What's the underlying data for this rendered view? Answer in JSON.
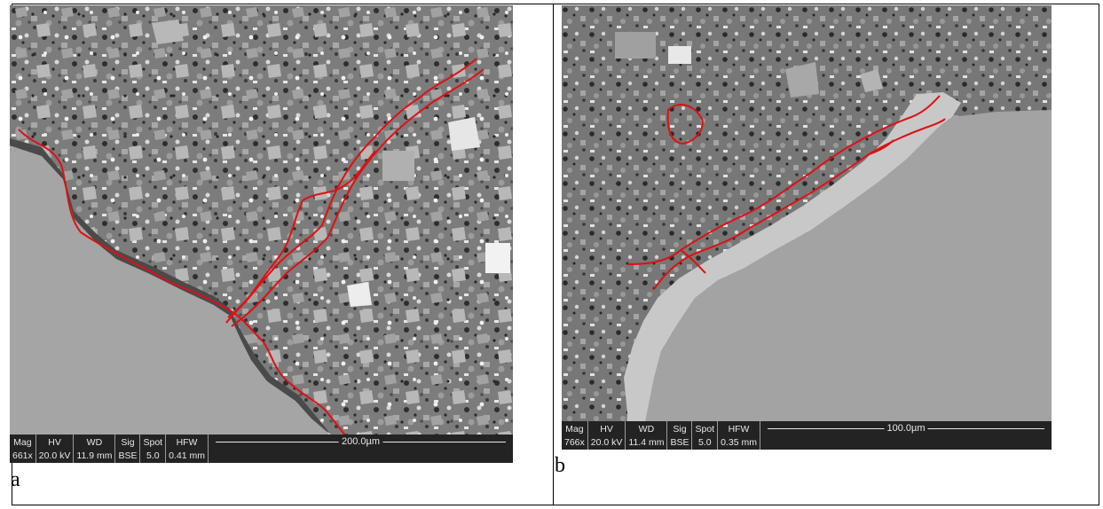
{
  "panels": {
    "a": {
      "label": "a",
      "databar": {
        "mag_h": "Mag",
        "mag_v": "661x",
        "hv_h": "HV",
        "hv_v": "20.0 kV",
        "wd_h": "WD",
        "wd_v": "11.9 mm",
        "sig_h": "Sig",
        "sig_v": "BSE",
        "spot_h": "Spot",
        "spot_v": "5.0",
        "hfw_h": "HFW",
        "hfw_v": "0.41 mm",
        "scale": "200.0µm"
      }
    },
    "b": {
      "label": "b",
      "databar": {
        "mag_h": "Mag",
        "mag_v": "766x",
        "hv_h": "HV",
        "hv_v": "20.0 kV",
        "wd_h": "WD",
        "wd_v": "11.4 mm",
        "sig_h": "Sig",
        "sig_v": "BSE",
        "spot_h": "Spot",
        "spot_v": "5.0",
        "hfw_h": "HFW",
        "hfw_v": "0.35 mm",
        "scale": "100.0µm"
      }
    }
  },
  "colors": {
    "crack_trace": "#e01010",
    "matrix": "#8e8e8e",
    "aggregate": "#b4b4b4",
    "databar": "#232323"
  }
}
